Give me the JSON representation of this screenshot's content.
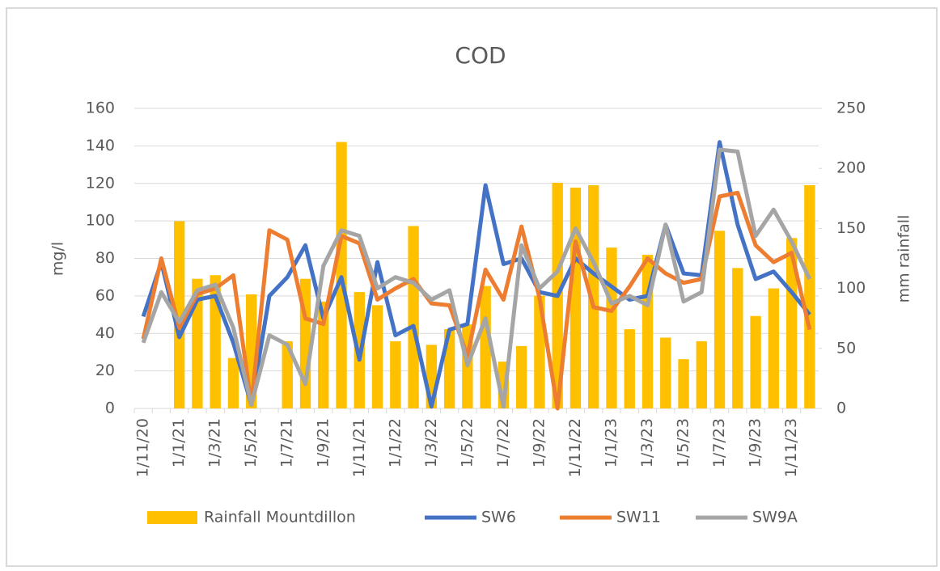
{
  "chart_data": {
    "type": "combo",
    "title": "COD",
    "y_label": "mg/l",
    "y2_label": "mm rainfall",
    "categories": [
      "1/11/20",
      null,
      "1/1/21",
      null,
      "1/3/21",
      null,
      "1/5/21",
      null,
      "1/7/21",
      null,
      "1/9/21",
      null,
      "1/11/21",
      null,
      "1/1/22",
      null,
      "1/3/22",
      null,
      "1/5/22",
      null,
      "1/7/22",
      null,
      "1/9/22",
      null,
      "1/11/22",
      null,
      "1/1/23",
      null,
      "1/3/23",
      null,
      "1/5/23",
      null,
      "1/7/23",
      null,
      "1/9/23",
      null,
      "1/11/23",
      null
    ],
    "ylim": [
      0,
      160
    ],
    "yticks": [
      0,
      20,
      40,
      60,
      80,
      100,
      120,
      140,
      160
    ],
    "y2lim": [
      0,
      250
    ],
    "y2ticks": [
      0,
      50,
      100,
      150,
      200,
      250
    ],
    "grid": true,
    "legend": "bottom",
    "series": [
      {
        "name": "Rainfall Mountdillon",
        "type": "bar",
        "axis": "y2",
        "color": "#ffc000",
        "values": [
          null,
          null,
          156,
          108,
          111,
          42,
          95,
          null,
          56,
          108,
          89,
          222,
          97,
          86,
          56,
          152,
          53,
          66,
          70,
          102,
          39,
          52,
          94,
          188,
          184,
          186,
          134,
          66,
          128,
          59,
          41,
          56,
          148,
          117,
          77,
          100,
          142,
          186
        ]
      },
      {
        "name": "SW6",
        "type": "line",
        "color": "#4472c4",
        "values": [
          49,
          78,
          38,
          58,
          60,
          35,
          2,
          60,
          70,
          87,
          48,
          70,
          26,
          78,
          39,
          44,
          1,
          42,
          45,
          119,
          77,
          80,
          62,
          60,
          80,
          72,
          65,
          58,
          60,
          98,
          72,
          71,
          142,
          98,
          69,
          73,
          62,
          50
        ]
      },
      {
        "name": "SW11",
        "type": "line",
        "color": "#ed7d31",
        "values": [
          37,
          80,
          43,
          61,
          64,
          71,
          2,
          95,
          90,
          48,
          45,
          92,
          88,
          58,
          64,
          69,
          56,
          55,
          28,
          74,
          58,
          97,
          59,
          0,
          89,
          54,
          52,
          65,
          80,
          72,
          67,
          69,
          113,
          115,
          87,
          78,
          83,
          42
        ]
      },
      {
        "name": "SW9A",
        "type": "line",
        "color": "#a5a5a5",
        "values": [
          35,
          62,
          46,
          63,
          66,
          43,
          2,
          39,
          34,
          13,
          76,
          95,
          92,
          64,
          70,
          67,
          58,
          63,
          23,
          48,
          1,
          87,
          64,
          73,
          96,
          78,
          56,
          60,
          55,
          98,
          57,
          62,
          138,
          137,
          92,
          106,
          89,
          69
        ]
      }
    ]
  }
}
